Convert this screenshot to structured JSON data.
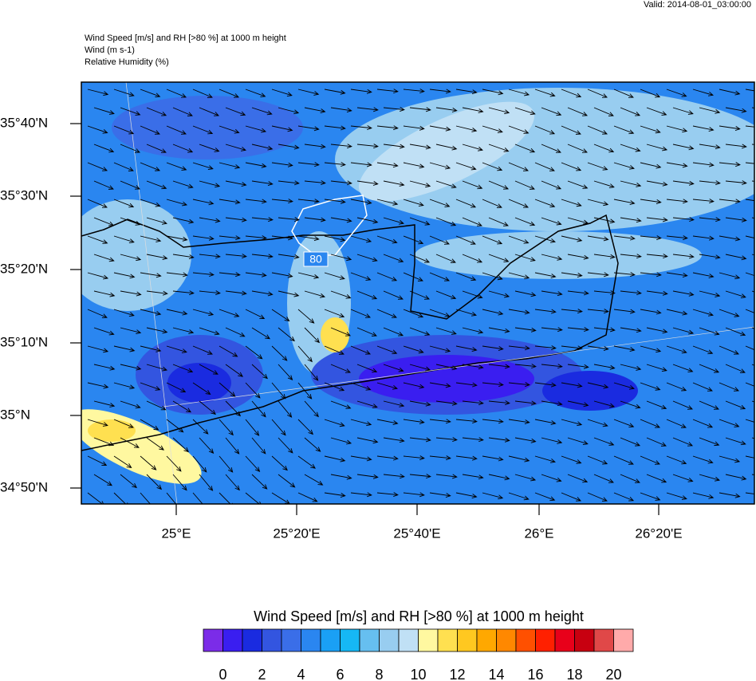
{
  "header": {
    "valid": "Valid: 2014-08-01_03:00:00",
    "lines": [
      "Wind Speed [m/s] and RH [>80 %] at 1000 m height",
      "Wind   (m s-1)",
      "Relative Humidity   (%)"
    ]
  },
  "map": {
    "lat_labels": [
      "35°40'N",
      "35°30'N",
      "35°20'N",
      "35°10'N",
      "35°N",
      "34°50'N"
    ],
    "lon_labels": [
      "25°E",
      "25°20'E",
      "25°40'E",
      "26°E",
      "26°20'E"
    ],
    "contour_label": "80"
  },
  "colorbar": {
    "title": "Wind Speed [m/s] and RH [>80 %] at 1000 m height",
    "colors": [
      "#7b2ce8",
      "#3a1ef0",
      "#1a2be0",
      "#3355e0",
      "#3a6ee8",
      "#2a86f0",
      "#1aa0f5",
      "#16b8f5",
      "#66bff0",
      "#98cdf0",
      "#c0e0f5",
      "#fff8a0",
      "#ffe050",
      "#ffc820",
      "#ffa800",
      "#ff8800",
      "#ff5000",
      "#ff2000",
      "#e8001a",
      "#c80010",
      "#e04848",
      "#ffaaaa"
    ],
    "ticks": [
      0,
      2,
      4,
      6,
      8,
      10,
      12,
      14,
      16,
      18,
      20
    ]
  }
}
